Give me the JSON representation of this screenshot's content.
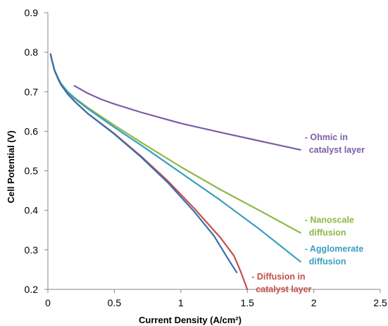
{
  "chart_data": {
    "type": "line",
    "title": "",
    "xlabel": "Current Density (A/cm²)",
    "ylabel": "Cell Potential (V)",
    "xlim": [
      0,
      2.5
    ],
    "ylim": [
      0.2,
      0.9
    ],
    "xticks": [
      "0",
      "0.5",
      "1",
      "1.5",
      "2",
      "2.5"
    ],
    "yticks": [
      "0.2",
      "0.3",
      "0.4",
      "0.5",
      "0.6",
      "0.7",
      "0.8",
      "0.9"
    ],
    "grid": false,
    "legend": "inline labels at line ends",
    "series": [
      {
        "name": "Ohmic in catalyst layer",
        "label_lines": [
          "- Ohmic in",
          "catalyst layer"
        ],
        "color": "#7b5ea7",
        "x": [
          0.2,
          0.3,
          0.4,
          0.5,
          0.7,
          1.0,
          1.3,
          1.6,
          1.9
        ],
        "y": [
          0.715,
          0.696,
          0.681,
          0.669,
          0.648,
          0.62,
          0.597,
          0.575,
          0.553
        ]
      },
      {
        "name": "Nanoscale diffusion",
        "label_lines": [
          "- Nanoscale",
          "diffusion"
        ],
        "color": "#8fb648",
        "x": [
          0.02,
          0.03,
          0.05,
          0.08,
          0.1,
          0.15,
          0.2,
          0.3,
          0.5,
          0.7,
          1.0,
          1.3,
          1.6,
          1.9
        ],
        "y": [
          0.795,
          0.78,
          0.755,
          0.732,
          0.72,
          0.7,
          0.685,
          0.66,
          0.615,
          0.572,
          0.51,
          0.452,
          0.398,
          0.343
        ]
      },
      {
        "name": "Agglomerate diffusion",
        "label_lines": [
          "- Agglomerate",
          "diffusion"
        ],
        "color": "#3a9fc0",
        "x": [
          0.02,
          0.03,
          0.05,
          0.08,
          0.1,
          0.15,
          0.2,
          0.3,
          0.5,
          0.7,
          1.0,
          1.3,
          1.6,
          1.9
        ],
        "y": [
          0.795,
          0.78,
          0.755,
          0.732,
          0.72,
          0.699,
          0.683,
          0.657,
          0.61,
          0.565,
          0.495,
          0.425,
          0.35,
          0.27
        ]
      },
      {
        "name": "Diffusion in catalyst layer",
        "label_lines": [
          "- Diffusion in",
          "catalyst layer"
        ],
        "color": "#c0504d",
        "x": [
          0.02,
          0.03,
          0.05,
          0.08,
          0.1,
          0.15,
          0.2,
          0.3,
          0.5,
          0.7,
          0.9,
          1.1,
          1.3,
          1.4,
          1.45,
          1.5
        ],
        "y": [
          0.795,
          0.78,
          0.754,
          0.73,
          0.717,
          0.694,
          0.676,
          0.645,
          0.594,
          0.537,
          0.475,
          0.405,
          0.33,
          0.285,
          0.245,
          0.2
        ]
      },
      {
        "name": "",
        "label_lines": [],
        "color": "#3b6fa8",
        "x": [
          0.02,
          0.03,
          0.05,
          0.08,
          0.1,
          0.15,
          0.2,
          0.3,
          0.5,
          0.7,
          0.9,
          1.1,
          1.25,
          1.35,
          1.42
        ],
        "y": [
          0.795,
          0.78,
          0.754,
          0.73,
          0.717,
          0.694,
          0.676,
          0.645,
          0.593,
          0.535,
          0.471,
          0.397,
          0.335,
          0.28,
          0.243
        ]
      }
    ]
  }
}
